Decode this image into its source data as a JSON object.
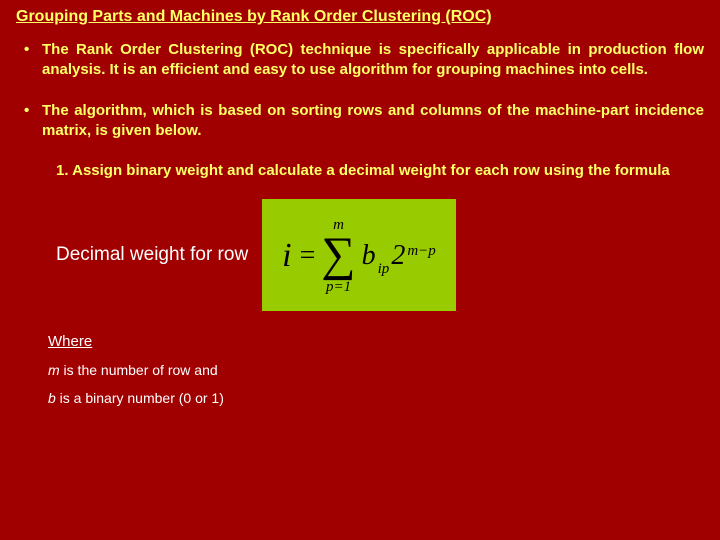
{
  "colors": {
    "background": "#a00000",
    "accent_text": "#ffff66",
    "body_text": "#ffffff",
    "formula_bg": "#99cc00",
    "formula_text": "#000000"
  },
  "typography": {
    "title_fontsize": 16,
    "bullet_fontsize": 15,
    "formula_label_fontsize": 19,
    "where_fontsize": 15,
    "desc_fontsize": 14
  },
  "title": "Grouping Parts and Machines by Rank Order Clustering (ROC)",
  "bullets": [
    "The Rank Order Clustering (ROC) technique is specifically applicable in production flow analysis. It is an efficient and easy to use algorithm for grouping machines into cells.",
    "The algorithm, which is based on sorting rows and columns of the machine-part incidence matrix, is given below."
  ],
  "step1": "1. Assign binary weight and calculate a decimal weight for each row using the formula",
  "formula": {
    "label": "Decimal weight for row",
    "lhs": "i",
    "equals": "=",
    "sum_upper": "m",
    "sum_lower": "p=1",
    "coeff": "b",
    "coeff_sub": "ip",
    "base": "2",
    "exponent": "m−p"
  },
  "where_label": "Where",
  "desc_m_var": "m",
  "desc_m_text": " is the number of row and",
  "desc_b_var": "b",
  "desc_b_text": " is a binary number (0 or 1)"
}
